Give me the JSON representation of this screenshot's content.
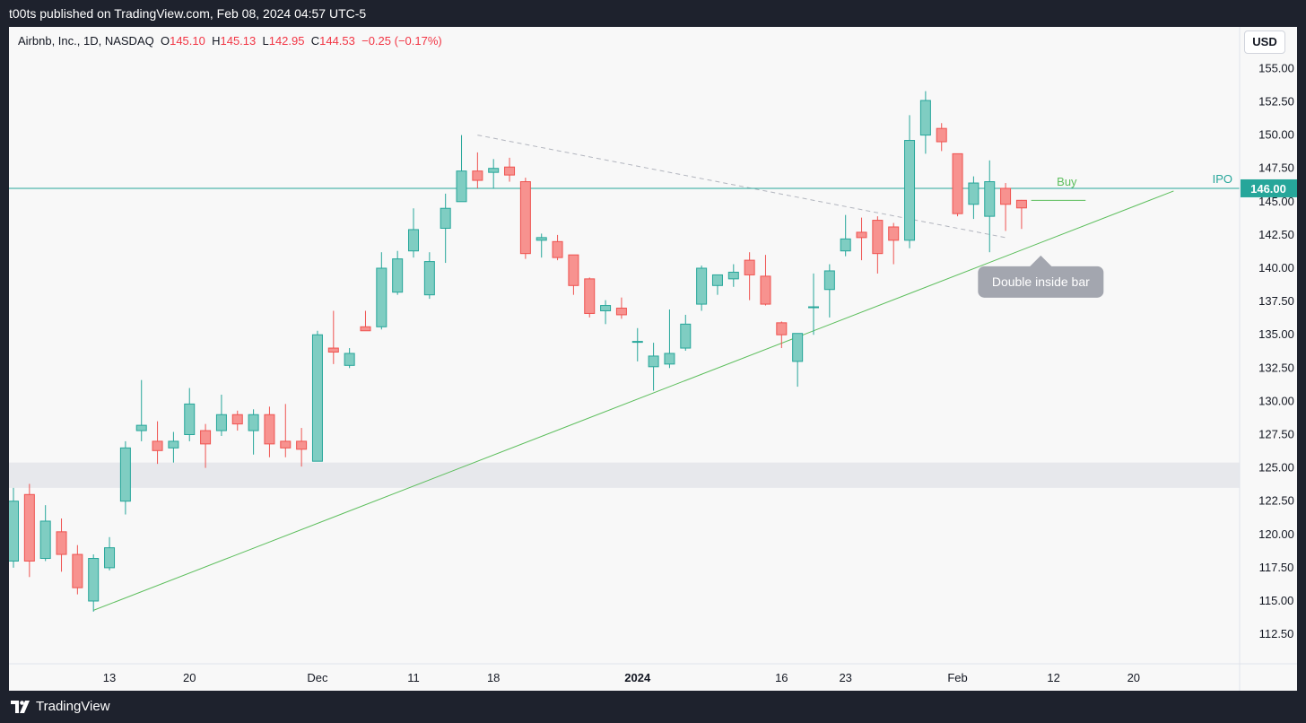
{
  "header": {
    "published": "t00ts published on TradingView.com, Feb 08, 2024 04:57 UTC-5"
  },
  "legend": {
    "symbol": "Airbnb, Inc., 1D, NASDAQ",
    "o_label": "O",
    "o_value": "145.10",
    "h_label": "H",
    "h_value": "145.13",
    "l_label": "L",
    "l_value": "142.95",
    "c_label": "C",
    "c_value": "144.53",
    "change": "−0.25 (−0.17%)"
  },
  "currency_button": "USD",
  "footer": {
    "brand": "TradingView"
  },
  "colors": {
    "up": "#26a69a",
    "up_fill": "#7fcdc2",
    "down": "#ef5350",
    "down_fill": "#f7928f",
    "trendline": "#5cbe5c",
    "ipo_line": "#26a69a",
    "zone": "#e7e8ec"
  },
  "chart_data": {
    "type": "candlestick",
    "title": "",
    "y_range": [
      110,
      157
    ],
    "y_ticks": [
      "155.00",
      "152.50",
      "150.00",
      "147.50",
      "145.00",
      "142.50",
      "140.00",
      "137.50",
      "135.00",
      "132.50",
      "130.00",
      "127.50",
      "125.00",
      "122.50",
      "120.00",
      "117.50",
      "115.00",
      "112.50"
    ],
    "x_ticks": [
      {
        "label": "13",
        "bar": 6
      },
      {
        "label": "20",
        "bar": 11
      },
      {
        "label": "Dec",
        "bar": 19
      },
      {
        "label": "11",
        "bar": 25
      },
      {
        "label": "18",
        "bar": 30
      },
      {
        "label": "2024",
        "bar": 39,
        "bold": true
      },
      {
        "label": "16",
        "bar": 48
      },
      {
        "label": "23",
        "bar": 52
      },
      {
        "label": "Feb",
        "bar": 59
      },
      {
        "label": "12",
        "bar": 65
      },
      {
        "label": "20",
        "bar": 70
      }
    ],
    "candles": [
      {
        "o": 118.0,
        "h": 123.5,
        "l": 117.5,
        "c": 122.5
      },
      {
        "o": 123.0,
        "h": 123.8,
        "l": 116.8,
        "c": 118.0
      },
      {
        "o": 118.2,
        "h": 122.2,
        "l": 118.0,
        "c": 121.0
      },
      {
        "o": 120.2,
        "h": 121.2,
        "l": 117.2,
        "c": 118.5
      },
      {
        "o": 118.5,
        "h": 119.2,
        "l": 115.5,
        "c": 116.0
      },
      {
        "o": 115.0,
        "h": 118.5,
        "l": 114.2,
        "c": 118.2
      },
      {
        "o": 117.5,
        "h": 119.8,
        "l": 117.3,
        "c": 119.0
      },
      {
        "o": 122.5,
        "h": 127.0,
        "l": 121.5,
        "c": 126.5
      },
      {
        "o": 127.8,
        "h": 131.6,
        "l": 127.0,
        "c": 128.2
      },
      {
        "o": 127.0,
        "h": 128.5,
        "l": 125.3,
        "c": 126.3
      },
      {
        "o": 126.5,
        "h": 127.7,
        "l": 125.4,
        "c": 127.0
      },
      {
        "o": 127.5,
        "h": 131.0,
        "l": 127.0,
        "c": 129.8
      },
      {
        "o": 127.8,
        "h": 128.3,
        "l": 125.0,
        "c": 126.8
      },
      {
        "o": 127.8,
        "h": 130.5,
        "l": 127.4,
        "c": 129.0
      },
      {
        "o": 129.0,
        "h": 129.3,
        "l": 127.8,
        "c": 128.3
      },
      {
        "o": 127.8,
        "h": 129.4,
        "l": 126.0,
        "c": 129.0
      },
      {
        "o": 129.0,
        "h": 129.6,
        "l": 125.8,
        "c": 126.8
      },
      {
        "o": 127.0,
        "h": 129.8,
        "l": 125.8,
        "c": 126.5
      },
      {
        "o": 127.0,
        "h": 128.0,
        "l": 125.1,
        "c": 126.4
      },
      {
        "o": 125.5,
        "h": 135.3,
        "l": 125.5,
        "c": 135.0
      },
      {
        "o": 134.0,
        "h": 136.8,
        "l": 132.8,
        "c": 133.7
      },
      {
        "o": 132.7,
        "h": 134.0,
        "l": 132.5,
        "c": 133.6
      },
      {
        "o": 135.6,
        "h": 136.8,
        "l": 135.3,
        "c": 135.3
      },
      {
        "o": 135.6,
        "h": 141.2,
        "l": 135.4,
        "c": 140.0
      },
      {
        "o": 138.2,
        "h": 141.3,
        "l": 138.0,
        "c": 140.7
      },
      {
        "o": 141.3,
        "h": 144.5,
        "l": 140.8,
        "c": 142.9
      },
      {
        "o": 138.0,
        "h": 141.2,
        "l": 137.7,
        "c": 140.5
      },
      {
        "o": 143.0,
        "h": 145.6,
        "l": 140.4,
        "c": 144.5
      },
      {
        "o": 145.0,
        "h": 150.0,
        "l": 145.0,
        "c": 147.3
      },
      {
        "o": 147.3,
        "h": 148.7,
        "l": 146.0,
        "c": 146.6
      },
      {
        "o": 147.2,
        "h": 148.2,
        "l": 146.0,
        "c": 147.5
      },
      {
        "o": 147.6,
        "h": 148.3,
        "l": 146.5,
        "c": 147.0
      },
      {
        "o": 146.5,
        "h": 146.8,
        "l": 140.7,
        "c": 141.1
      },
      {
        "o": 142.1,
        "h": 142.6,
        "l": 140.8,
        "c": 142.3
      },
      {
        "o": 142.0,
        "h": 142.5,
        "l": 140.6,
        "c": 140.8
      },
      {
        "o": 141.0,
        "h": 141.0,
        "l": 138.0,
        "c": 138.7
      },
      {
        "o": 139.2,
        "h": 139.3,
        "l": 136.3,
        "c": 136.6
      },
      {
        "o": 136.8,
        "h": 137.6,
        "l": 135.8,
        "c": 137.2
      },
      {
        "o": 137.0,
        "h": 137.8,
        "l": 136.2,
        "c": 136.5
      },
      {
        "o": 134.5,
        "h": 135.5,
        "l": 133.0,
        "c": 134.5
      },
      {
        "o": 132.6,
        "h": 134.4,
        "l": 130.8,
        "c": 133.4
      },
      {
        "o": 132.8,
        "h": 136.9,
        "l": 132.5,
        "c": 133.6
      },
      {
        "o": 134.0,
        "h": 136.5,
        "l": 133.8,
        "c": 135.8
      },
      {
        "o": 137.3,
        "h": 140.2,
        "l": 136.8,
        "c": 140.0
      },
      {
        "o": 138.7,
        "h": 139.5,
        "l": 138.0,
        "c": 139.5
      },
      {
        "o": 139.2,
        "h": 140.3,
        "l": 138.6,
        "c": 139.7
      },
      {
        "o": 140.6,
        "h": 141.2,
        "l": 137.6,
        "c": 139.5
      },
      {
        "o": 139.4,
        "h": 141.0,
        "l": 137.2,
        "c": 137.3
      },
      {
        "o": 135.9,
        "h": 136.0,
        "l": 134.0,
        "c": 135.0
      },
      {
        "o": 133.0,
        "h": 135.1,
        "l": 131.1,
        "c": 135.1
      },
      {
        "o": 137.1,
        "h": 139.6,
        "l": 135.0,
        "c": 137.1
      },
      {
        "o": 138.4,
        "h": 140.3,
        "l": 136.3,
        "c": 139.8
      },
      {
        "o": 141.3,
        "h": 144.0,
        "l": 140.9,
        "c": 142.2
      },
      {
        "o": 142.7,
        "h": 143.8,
        "l": 140.6,
        "c": 142.3
      },
      {
        "o": 143.6,
        "h": 143.9,
        "l": 139.6,
        "c": 141.1
      },
      {
        "o": 143.1,
        "h": 143.4,
        "l": 140.3,
        "c": 142.1
      },
      {
        "o": 142.1,
        "h": 151.5,
        "l": 141.5,
        "c": 149.6
      },
      {
        "o": 150.0,
        "h": 153.3,
        "l": 148.6,
        "c": 152.6
      },
      {
        "o": 150.5,
        "h": 150.9,
        "l": 148.8,
        "c": 149.5
      },
      {
        "o": 148.6,
        "h": 148.6,
        "l": 143.9,
        "c": 144.1
      },
      {
        "o": 144.8,
        "h": 146.9,
        "l": 143.7,
        "c": 146.4
      },
      {
        "o": 143.9,
        "h": 148.1,
        "l": 141.2,
        "c": 146.5
      },
      {
        "o": 146.0,
        "h": 146.4,
        "l": 142.8,
        "c": 144.8
      },
      {
        "o": 145.1,
        "h": 145.13,
        "l": 142.95,
        "c": 144.53
      }
    ],
    "horizontal_lines": [
      {
        "label": "IPO",
        "price": 146.0,
        "price_label": "146.00"
      }
    ],
    "zones": [
      {
        "from": 123.5,
        "to": 125.4
      }
    ],
    "trendlines": [
      {
        "from": {
          "bar": 5,
          "price": 114.3
        },
        "to": {
          "bar": 72.5,
          "price": 145.8
        }
      }
    ],
    "dashed_lines": [
      {
        "from": {
          "bar": 29,
          "price": 150.0
        },
        "to": {
          "bar": 62,
          "price": 142.3
        }
      }
    ],
    "annotations": [
      {
        "text": "Buy",
        "bar": 65.2,
        "price": 146.2,
        "line_from": 63.6,
        "line_to": 67.0,
        "line_price": 145.1
      },
      {
        "text": "Double inside bar",
        "bar": 64.2,
        "price": 139.0
      }
    ]
  }
}
